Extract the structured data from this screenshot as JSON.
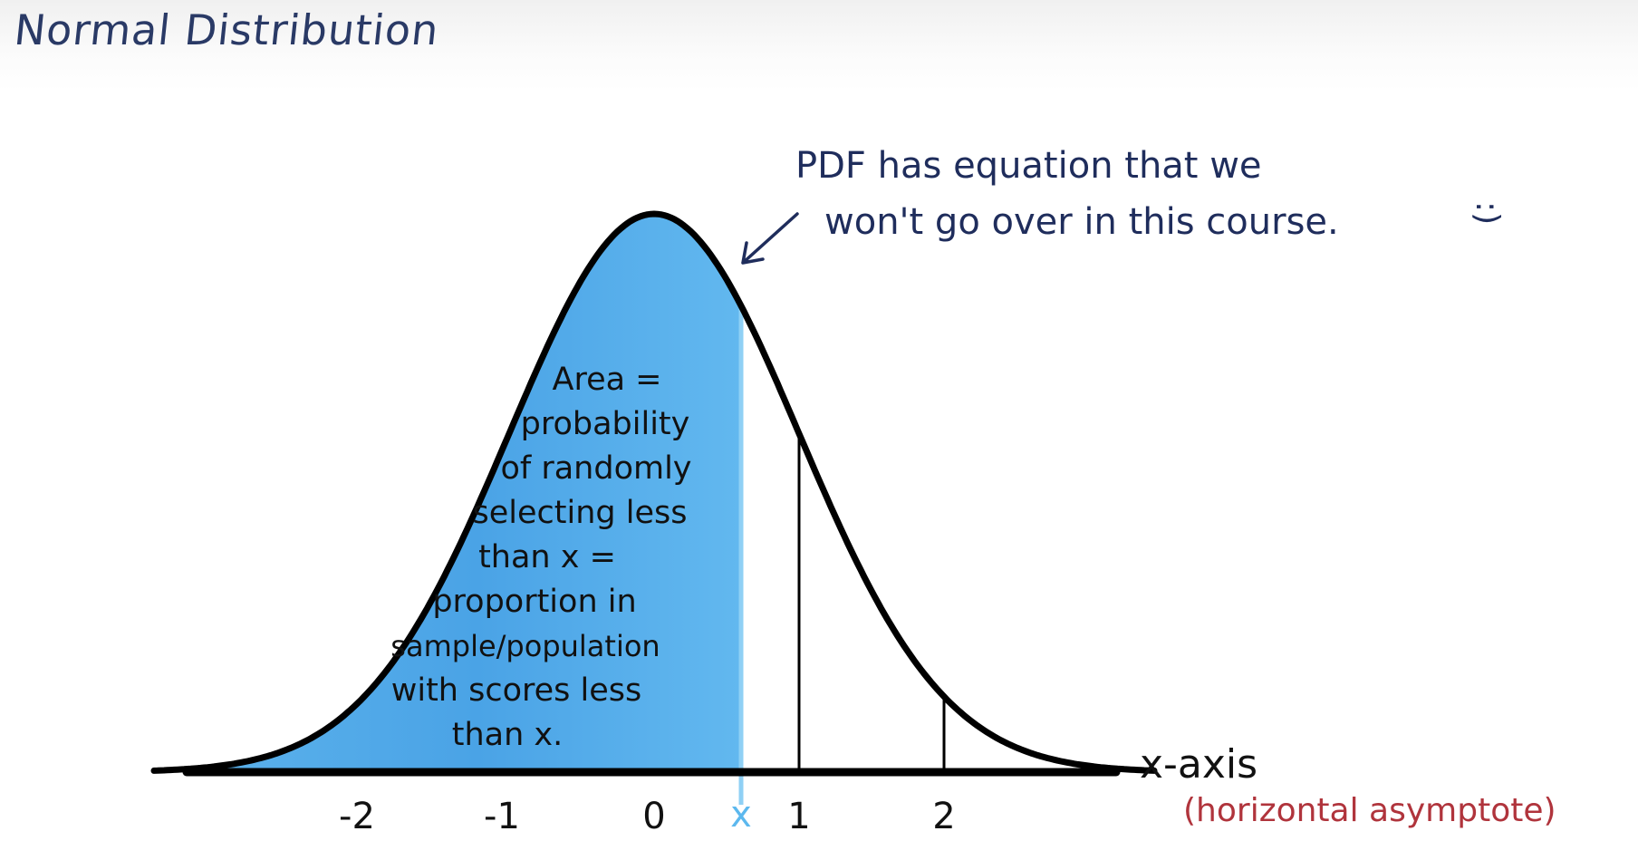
{
  "title": "Normal Distribution",
  "annotation": {
    "lines": [
      "PDF has equation that we",
      "won't go over in this course."
    ],
    "smiley": ":)"
  },
  "area_text": [
    "Area =",
    "probability",
    "of randomly",
    "selecting less",
    "than x =",
    "proportion in",
    "sample/population",
    "with scores less",
    "than x."
  ],
  "axis": {
    "label": "x-axis",
    "note": "(horizontal asymptote)",
    "x_marker": "x"
  },
  "chart_data": {
    "type": "area",
    "distribution": "normal",
    "mean": 0,
    "sd": 1,
    "shaded_region": "left of x",
    "x_value": 0.6,
    "ticks": [
      -2,
      -1,
      0,
      1,
      2
    ],
    "tick_labels": [
      "-2",
      "-1",
      "0",
      "1",
      "2"
    ],
    "vertical_lines_at": [
      1,
      2
    ],
    "xlim": [
      -3.6,
      3.6
    ]
  },
  "colors": {
    "ink": "#1f2d5c",
    "shade": "#5eb4ec",
    "shade_dark": "#3d8fd6",
    "marker": "#5cb8ee",
    "note": "#b0343c",
    "curve": "#000000"
  }
}
